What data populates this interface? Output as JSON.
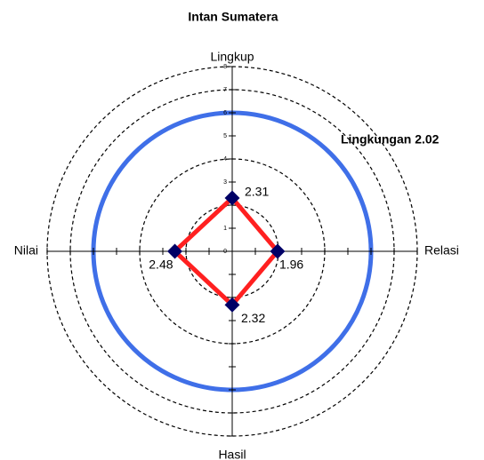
{
  "chart_data": {
    "type": "radar",
    "title": "Intan Sumatera",
    "categories": [
      "Lingkup",
      "Relasi",
      "Hasil",
      "Nilai"
    ],
    "series": [
      {
        "name": "Intan Sumatera",
        "color": "#ff2020",
        "marker_color": "#000066",
        "values": [
          2.31,
          1.96,
          2.32,
          2.48
        ]
      }
    ],
    "ylim": [
      0,
      8
    ],
    "yticks": [
      0,
      1,
      2,
      3,
      4,
      5,
      6,
      7,
      8
    ],
    "grid_rings": [
      2,
      4,
      6,
      7,
      8
    ],
    "ring": 6,
    "ring_color": "#3f6fe8",
    "annotation": "Lingkungan 2.02"
  }
}
